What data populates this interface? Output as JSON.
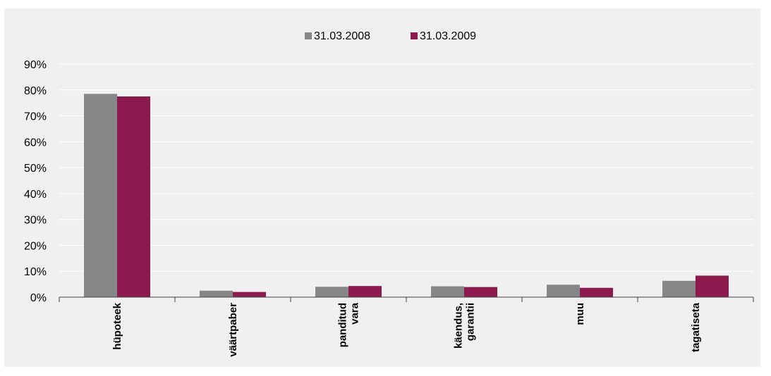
{
  "chart_data": {
    "type": "bar",
    "categories": [
      [
        "hüpoteek"
      ],
      [
        "väärtpaber"
      ],
      [
        "panditud",
        "vara"
      ],
      [
        "käendus,",
        "garantii"
      ],
      [
        "muu"
      ],
      [
        "tagatiseta"
      ]
    ],
    "series": [
      {
        "name": "31.03.2008",
        "color": "#878787",
        "values": [
          78.5,
          2.5,
          4.0,
          4.2,
          4.8,
          6.3
        ]
      },
      {
        "name": "31.03.2009",
        "color": "#8c1a4e",
        "values": [
          77.5,
          2.0,
          4.3,
          3.9,
          3.6,
          8.3
        ]
      }
    ],
    "yticks": [
      "0%",
      "10%",
      "20%",
      "30%",
      "40%",
      "50%",
      "60%",
      "70%",
      "80%",
      "90%"
    ],
    "ylim": [
      0,
      90
    ],
    "grid": true,
    "legend_position": "top-center"
  }
}
